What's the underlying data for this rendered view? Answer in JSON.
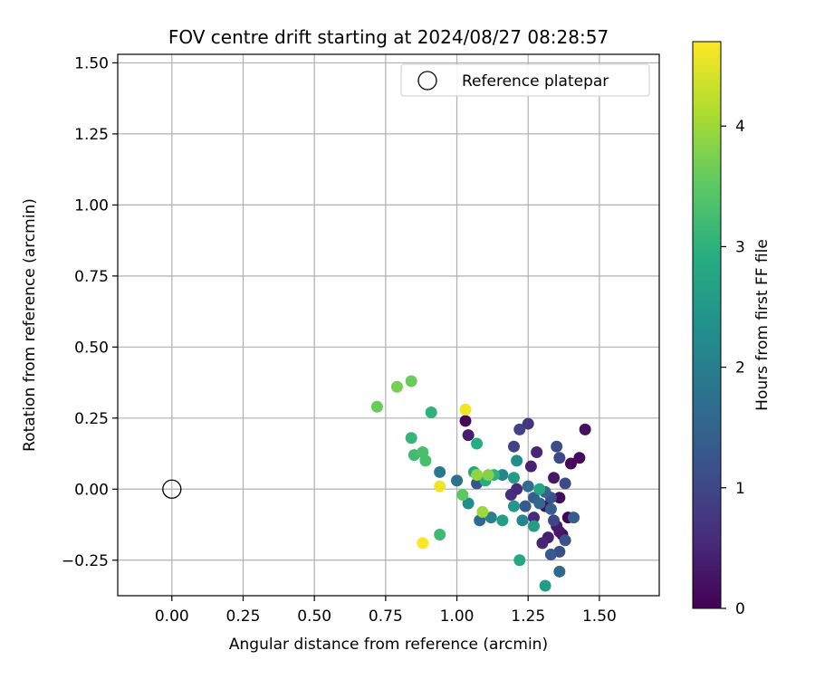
{
  "chart_data": {
    "type": "scatter",
    "title": "FOV centre drift starting at 2024/08/27 08:28:57",
    "xlabel": "Angular distance from reference (arcmin)",
    "ylabel": "Rotation from reference (arcmin)",
    "xlim": [
      -0.19,
      1.71
    ],
    "ylim": [
      -0.375,
      1.53
    ],
    "xticks": [
      0.0,
      0.25,
      0.5,
      0.75,
      1.0,
      1.25,
      1.5
    ],
    "xtick_labels": [
      "0.00",
      "0.25",
      "0.50",
      "0.75",
      "1.00",
      "1.25",
      "1.50"
    ],
    "yticks": [
      -0.25,
      0.0,
      0.25,
      0.5,
      0.75,
      1.0,
      1.25,
      1.5
    ],
    "ytick_labels": [
      "−0.25",
      "0.00",
      "0.25",
      "0.50",
      "0.75",
      "1.00",
      "1.25",
      "1.50"
    ],
    "grid": true,
    "legend": {
      "position": "top-right",
      "entries": [
        "Reference platepar"
      ]
    },
    "reference_point": {
      "x": 0.0,
      "y": 0.0,
      "label": "Reference platepar"
    },
    "colorbar": {
      "label": "Hours from first FF file",
      "colormap": "viridis",
      "range": [
        0,
        4.7
      ],
      "ticks": [
        0,
        1,
        2,
        3,
        4
      ],
      "tick_labels": [
        "0",
        "1",
        "2",
        "3",
        "4"
      ]
    },
    "points": [
      {
        "x": 1.03,
        "y": 0.24,
        "c": 0.05
      },
      {
        "x": 1.04,
        "y": 0.19,
        "c": 0.4
      },
      {
        "x": 1.45,
        "y": 0.21,
        "c": 0.2
      },
      {
        "x": 1.43,
        "y": 0.11,
        "c": 0.15
      },
      {
        "x": 1.4,
        "y": 0.09,
        "c": 0.1
      },
      {
        "x": 1.39,
        "y": -0.1,
        "c": 0.05
      },
      {
        "x": 1.36,
        "y": -0.03,
        "c": 0.15
      },
      {
        "x": 1.37,
        "y": -0.16,
        "c": 0.1
      },
      {
        "x": 1.36,
        "y": -0.15,
        "c": 0.3
      },
      {
        "x": 1.35,
        "y": -0.13,
        "c": 0.35
      },
      {
        "x": 1.34,
        "y": 0.04,
        "c": 0.3
      },
      {
        "x": 1.31,
        "y": -0.06,
        "c": 0.2
      },
      {
        "x": 1.32,
        "y": -0.17,
        "c": 0.4
      },
      {
        "x": 1.3,
        "y": -0.19,
        "c": 0.5
      },
      {
        "x": 1.28,
        "y": 0.13,
        "c": 0.5
      },
      {
        "x": 1.26,
        "y": 0.08,
        "c": 0.45
      },
      {
        "x": 1.27,
        "y": -0.1,
        "c": 0.55
      },
      {
        "x": 1.19,
        "y": -0.02,
        "c": 0.6
      },
      {
        "x": 1.21,
        "y": 0.0,
        "c": 0.55
      },
      {
        "x": 1.22,
        "y": 0.21,
        "c": 0.9
      },
      {
        "x": 1.25,
        "y": 0.23,
        "c": 0.75
      },
      {
        "x": 1.2,
        "y": 0.15,
        "c": 0.95
      },
      {
        "x": 1.36,
        "y": 0.11,
        "c": 1.0
      },
      {
        "x": 1.35,
        "y": 0.15,
        "c": 1.1
      },
      {
        "x": 1.38,
        "y": 0.02,
        "c": 1.05
      },
      {
        "x": 1.38,
        "y": -0.18,
        "c": 1.2
      },
      {
        "x": 1.36,
        "y": -0.22,
        "c": 1.1
      },
      {
        "x": 1.33,
        "y": -0.23,
        "c": 1.3
      },
      {
        "x": 1.36,
        "y": -0.29,
        "c": 1.6
      },
      {
        "x": 1.41,
        "y": -0.1,
        "c": 1.4
      },
      {
        "x": 1.34,
        "y": -0.11,
        "c": 1.0
      },
      {
        "x": 1.33,
        "y": -0.07,
        "c": 1.4
      },
      {
        "x": 1.33,
        "y": -0.03,
        "c": 1.2
      },
      {
        "x": 1.31,
        "y": -0.01,
        "c": 1.5
      },
      {
        "x": 1.27,
        "y": -0.03,
        "c": 1.4
      },
      {
        "x": 1.29,
        "y": -0.05,
        "c": 1.6
      },
      {
        "x": 1.24,
        "y": -0.06,
        "c": 1.3
      },
      {
        "x": 1.25,
        "y": 0.01,
        "c": 1.7
      },
      {
        "x": 1.23,
        "y": -0.11,
        "c": 2.1
      },
      {
        "x": 1.27,
        "y": -0.13,
        "c": 2.6
      },
      {
        "x": 1.07,
        "y": 0.02,
        "c": 1.2
      },
      {
        "x": 1.08,
        "y": -0.11,
        "c": 1.6
      },
      {
        "x": 1.12,
        "y": -0.1,
        "c": 2.0
      },
      {
        "x": 1.16,
        "y": 0.05,
        "c": 2.1
      },
      {
        "x": 1.21,
        "y": 0.1,
        "c": 2.3
      },
      {
        "x": 1.2,
        "y": 0.04,
        "c": 2.6
      },
      {
        "x": 1.2,
        "y": -0.06,
        "c": 2.5
      },
      {
        "x": 1.29,
        "y": 0.0,
        "c": 2.8
      },
      {
        "x": 1.0,
        "y": 0.03,
        "c": 1.7
      },
      {
        "x": 0.94,
        "y": 0.06,
        "c": 1.9
      },
      {
        "x": 1.04,
        "y": -0.05,
        "c": 2.3
      },
      {
        "x": 1.16,
        "y": -0.11,
        "c": 2.6
      },
      {
        "x": 1.22,
        "y": -0.25,
        "c": 2.8
      },
      {
        "x": 1.31,
        "y": -0.34,
        "c": 2.6
      },
      {
        "x": 1.06,
        "y": 0.06,
        "c": 2.8
      },
      {
        "x": 1.1,
        "y": 0.03,
        "c": 2.9
      },
      {
        "x": 1.13,
        "y": 0.05,
        "c": 3.0
      },
      {
        "x": 1.07,
        "y": 0.16,
        "c": 2.9
      },
      {
        "x": 0.91,
        "y": 0.27,
        "c": 3.0
      },
      {
        "x": 0.84,
        "y": 0.18,
        "c": 3.1
      },
      {
        "x": 0.85,
        "y": 0.12,
        "c": 3.2
      },
      {
        "x": 0.88,
        "y": 0.13,
        "c": 3.3
      },
      {
        "x": 0.89,
        "y": 0.1,
        "c": 3.3
      },
      {
        "x": 0.94,
        "y": -0.16,
        "c": 3.2
      },
      {
        "x": 1.02,
        "y": -0.02,
        "c": 3.5
      },
      {
        "x": 1.07,
        "y": 0.05,
        "c": 3.9
      },
      {
        "x": 1.11,
        "y": 0.05,
        "c": 3.8
      },
      {
        "x": 1.09,
        "y": -0.08,
        "c": 4.0
      },
      {
        "x": 0.72,
        "y": 0.29,
        "c": 3.6
      },
      {
        "x": 0.79,
        "y": 0.36,
        "c": 3.7
      },
      {
        "x": 0.84,
        "y": 0.38,
        "c": 3.6
      },
      {
        "x": 1.03,
        "y": 0.28,
        "c": 4.6
      },
      {
        "x": 0.94,
        "y": 0.01,
        "c": 4.6
      },
      {
        "x": 0.88,
        "y": -0.19,
        "c": 4.7
      }
    ]
  }
}
